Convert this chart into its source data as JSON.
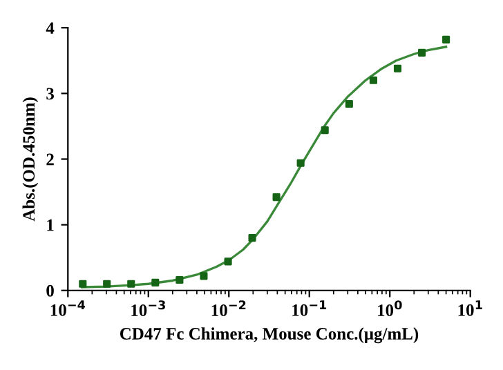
{
  "chart_data": {
    "type": "scatter",
    "xlabel": "CD47 Fc Chimera, Mouse Conc.(μg/mL)",
    "ylabel": "Abs.(OD.450nm)",
    "log": "x",
    "grid": false,
    "legend": false,
    "series": [
      {
        "marker": "square",
        "color": "#166416",
        "x": [
          0.000153,
          0.000305,
          0.00061,
          0.00122,
          0.00244,
          0.00488,
          0.00977,
          0.0195,
          0.039,
          0.078,
          0.156,
          0.3125,
          0.625,
          1.25,
          2.5,
          5
        ],
        "values": [
          0.1,
          0.1,
          0.1,
          0.12,
          0.16,
          0.22,
          0.44,
          0.8,
          1.42,
          1.94,
          2.44,
          2.84,
          3.2,
          3.38,
          3.62,
          3.82
        ]
      },
      {
        "type": "line",
        "color": "#3a8a3a",
        "x": [
          0.00015,
          0.0003,
          0.0006,
          0.001,
          0.002,
          0.004,
          0.007,
          0.01,
          0.015,
          0.02,
          0.03,
          0.04,
          0.06,
          0.08,
          0.1,
          0.15,
          0.2,
          0.3,
          0.5,
          0.8,
          1.2,
          2,
          3,
          5
        ],
        "values": [
          0.05,
          0.06,
          0.08,
          0.1,
          0.15,
          0.24,
          0.36,
          0.46,
          0.62,
          0.78,
          1.05,
          1.3,
          1.65,
          1.92,
          2.12,
          2.48,
          2.7,
          2.95,
          3.2,
          3.38,
          3.5,
          3.6,
          3.66,
          3.71
        ]
      }
    ],
    "xlim": [
      0.0001,
      10
    ],
    "xticks": [
      {
        "value": 0.0001,
        "label": "10$^{−4}$"
      },
      {
        "value": 0.001,
        "label": "10$^{−3}$"
      },
      {
        "value": 0.01,
        "label": "10$^{−2}$"
      },
      {
        "value": 0.1,
        "label": "10$^{−1}$"
      },
      {
        "value": 1,
        "label": "10$^{0}$"
      },
      {
        "value": 10,
        "label": "10$^{1}$"
      }
    ],
    "ylim": [
      0,
      4
    ],
    "yticks": [
      0,
      1,
      2,
      3,
      4
    ]
  }
}
